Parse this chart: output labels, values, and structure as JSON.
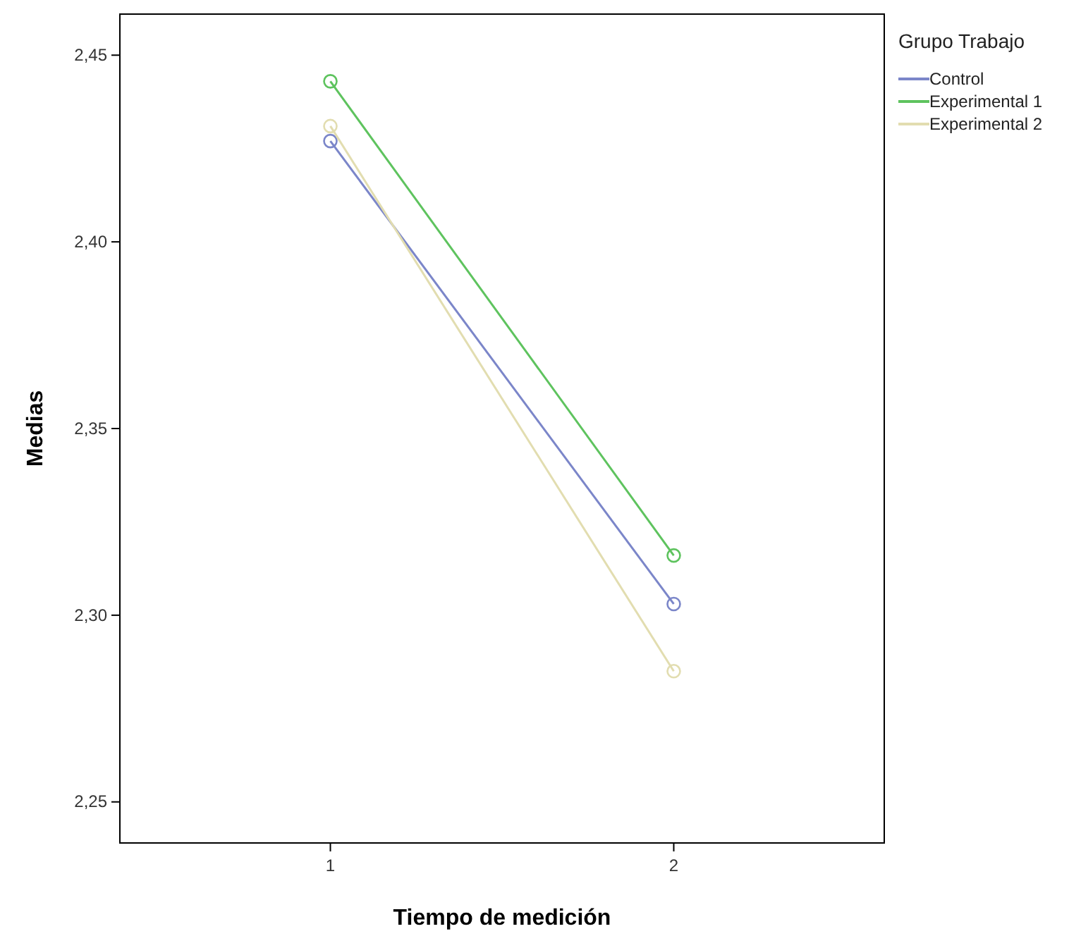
{
  "chart_data": {
    "type": "line",
    "xlabel": "Tiempo de medición",
    "ylabel": "Medias",
    "legend_title": "Grupo Trabajo",
    "legend": "right",
    "marker": "circle",
    "categories": [
      "1",
      "2"
    ],
    "ylim": [
      2.239,
      2.461
    ],
    "yticks": [
      {
        "value": 2.25,
        "label": "2,25"
      },
      {
        "value": 2.3,
        "label": "2,30"
      },
      {
        "value": 2.35,
        "label": "2,35"
      },
      {
        "value": 2.4,
        "label": "2,40"
      },
      {
        "value": 2.45,
        "label": "2,45"
      }
    ],
    "series": [
      {
        "name": "Control",
        "color": "#7b86c9",
        "values": [
          2.427,
          2.303
        ]
      },
      {
        "name": "Experimental 1",
        "color": "#5ec35e",
        "values": [
          2.443,
          2.316
        ]
      },
      {
        "name": "Experimental 2",
        "color": "#e2ddb0",
        "values": [
          2.431,
          2.285
        ]
      }
    ]
  }
}
